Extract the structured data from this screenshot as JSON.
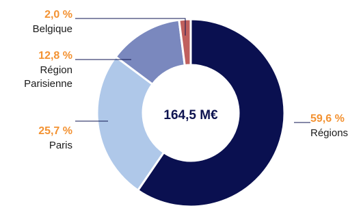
{
  "colors": {
    "accent": "#F39232",
    "center_text": "#0d1350",
    "leader": "#0d1350"
  },
  "chart_data": {
    "type": "pie",
    "donut": true,
    "center_label": "164,5 M€",
    "slices": [
      {
        "name": "Régions",
        "value": 59.6,
        "value_label": "59,6 %",
        "label_lines": [
          "Régions"
        ],
        "color": "#0A1050"
      },
      {
        "name": "Paris",
        "value": 25.7,
        "value_label": "25,7 %",
        "label_lines": [
          "Paris"
        ],
        "color": "#AFC8E9"
      },
      {
        "name": "Région Parisienne",
        "value": 12.8,
        "value_label": "12,8 %",
        "label_lines": [
          "Région",
          "Parisienne"
        ],
        "color": "#7A88BE"
      },
      {
        "name": "Belgique",
        "value": 2.0,
        "value_label": "2,0 %",
        "label_lines": [
          "Belgique"
        ],
        "color": "#C0605E"
      }
    ]
  }
}
